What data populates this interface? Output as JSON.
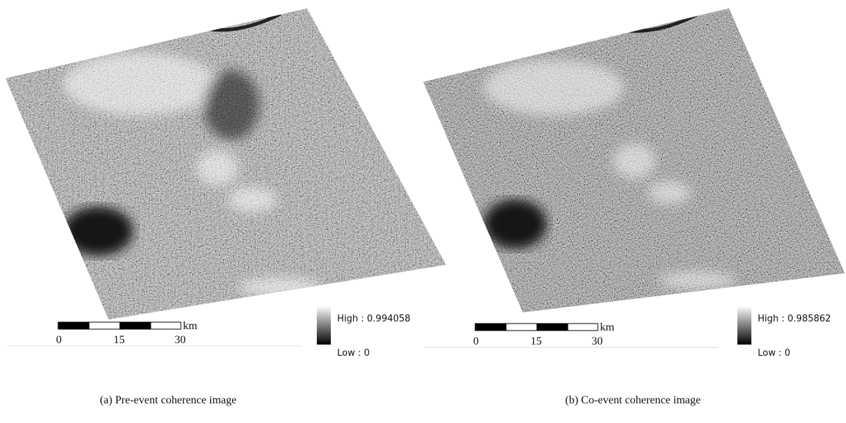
{
  "panels": [
    {
      "caption": "(a) Pre-event coherence image",
      "scale_bar": {
        "unit": "km",
        "ticks": [
          0,
          15,
          30
        ]
      },
      "legend": {
        "high": "High : 0.994058",
        "low": "Low : 0"
      }
    },
    {
      "caption": "(b) Co-event coherence image",
      "scale_bar": {
        "unit": "km",
        "ticks": [
          0,
          15,
          30
        ]
      },
      "legend": {
        "high": "High : 0.985862",
        "low": "Low : 0"
      }
    }
  ]
}
